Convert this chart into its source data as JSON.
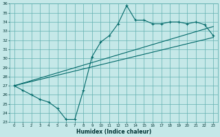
{
  "xlabel": "Humidex (Indice chaleur)",
  "ylabel": "",
  "bg_color": "#c5e8e8",
  "grid_color": "#62b0b0",
  "line_color": "#006868",
  "xlim": [
    -0.5,
    23.5
  ],
  "ylim": [
    23,
    36
  ],
  "xticks": [
    0,
    1,
    2,
    3,
    4,
    5,
    6,
    7,
    8,
    9,
    10,
    11,
    12,
    13,
    14,
    15,
    16,
    17,
    18,
    19,
    20,
    21,
    22,
    23
  ],
  "yticks": [
    23,
    24,
    25,
    26,
    27,
    28,
    29,
    30,
    31,
    32,
    33,
    34,
    35,
    36
  ],
  "line1_x": [
    0,
    1,
    2,
    3,
    4,
    5,
    6,
    7,
    8,
    9,
    10,
    11,
    12,
    13,
    14,
    15,
    16,
    17,
    18,
    19,
    20,
    21,
    22,
    23
  ],
  "line1_y": [
    27.0,
    26.5,
    26.0,
    25.5,
    25.2,
    24.5,
    23.3,
    23.3,
    26.5,
    30.2,
    31.8,
    32.5,
    33.8,
    35.8,
    34.2,
    34.2,
    33.8,
    33.8,
    34.0,
    34.0,
    33.8,
    34.0,
    33.7,
    32.5
  ],
  "line2_x": [
    0,
    23
  ],
  "line2_y": [
    27.0,
    33.5
  ],
  "line3_x": [
    0,
    23
  ],
  "line3_y": [
    27.0,
    32.3
  ]
}
